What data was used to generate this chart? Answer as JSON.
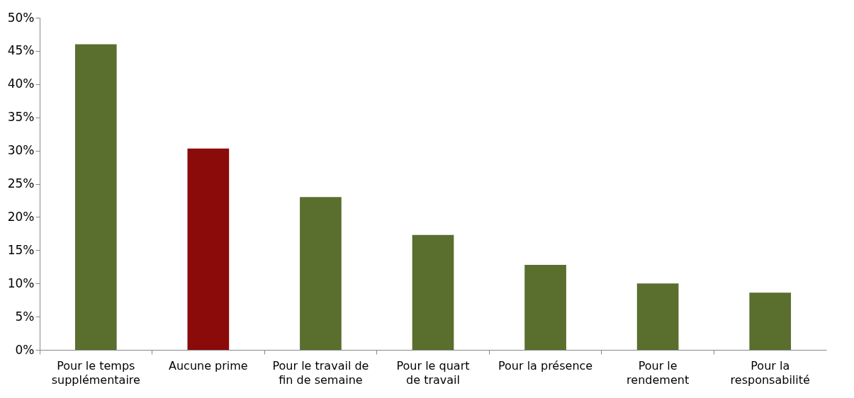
{
  "chart_data": {
    "type": "bar",
    "categories": [
      "Pour le temps\nsupplémentaire",
      "Aucune prime",
      "Pour le travail de\nfin de semaine",
      "Pour le quart\nde travail",
      "Pour la présence",
      "Pour le\nrendement",
      "Pour la\nresponsabilité"
    ],
    "values": [
      46,
      30.3,
      23,
      17.3,
      12.8,
      10,
      8.6
    ],
    "colors": [
      "#5a6e2e",
      "#8b0a0a",
      "#5a6e2e",
      "#5a6e2e",
      "#5a6e2e",
      "#5a6e2e",
      "#5a6e2e"
    ],
    "ylim": [
      0,
      50
    ],
    "yticks": [
      {
        "value": 0,
        "label": "0%"
      },
      {
        "value": 5,
        "label": "5%"
      },
      {
        "value": 10,
        "label": "10%"
      },
      {
        "value": 15,
        "label": "15%"
      },
      {
        "value": 20,
        "label": "20%"
      },
      {
        "value": 25,
        "label": "25%"
      },
      {
        "value": 30,
        "label": "30%"
      },
      {
        "value": 35,
        "label": "35%"
      },
      {
        "value": 40,
        "label": "40%"
      },
      {
        "value": 45,
        "label": "45%"
      },
      {
        "value": 50,
        "label": "50%"
      }
    ],
    "grid": false
  }
}
